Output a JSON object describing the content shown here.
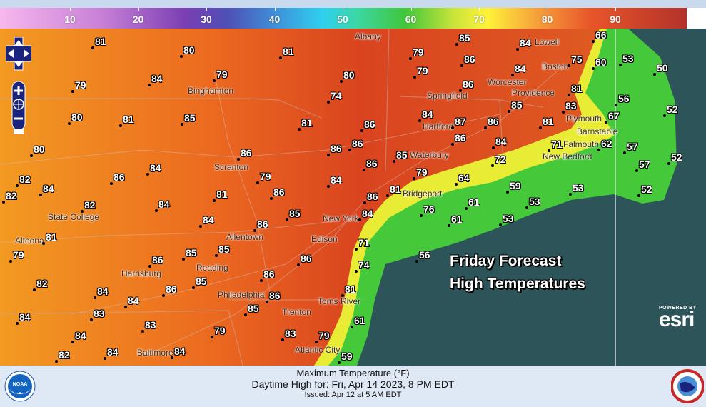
{
  "legend": {
    "ticks": [
      "10",
      "20",
      "30",
      "40",
      "50",
      "60",
      "70",
      "80",
      "90"
    ],
    "unit": "°F"
  },
  "map": {
    "title_line1": "Friday Forecast",
    "title_line2": "High Temperatures",
    "attribution_small": "POWERED BY",
    "attribution_brand": "esri",
    "temperatures": [
      "81",
      "80",
      "81",
      "79",
      "85",
      "84",
      "66",
      "53",
      "60",
      "75",
      "50",
      "84",
      "86",
      "79",
      "80",
      "79",
      "84",
      "79",
      "74",
      "86",
      "81",
      "56",
      "52",
      "83",
      "67",
      "80",
      "81",
      "85",
      "81",
      "86",
      "84",
      "87",
      "86",
      "81",
      "85",
      "80",
      "86",
      "86",
      "86",
      "85",
      "86",
      "84",
      "71",
      "62",
      "57",
      "52",
      "57",
      "84",
      "86",
      "82",
      "79",
      "86",
      "72",
      "79",
      "64",
      "84",
      "84",
      "82",
      "81",
      "86",
      "81",
      "86",
      "59",
      "53",
      "52",
      "53",
      "61",
      "82",
      "84",
      "84",
      "85",
      "84",
      "76",
      "53",
      "61",
      "86",
      "81",
      "71",
      "85",
      "85",
      "86",
      "79",
      "56",
      "86",
      "74",
      "86",
      "85",
      "82",
      "86",
      "84",
      "81",
      "84",
      "86",
      "85",
      "83",
      "84",
      "61",
      "83",
      "79",
      "83",
      "79",
      "84",
      "84",
      "84",
      "59",
      "82"
    ],
    "cities": [
      "Albany",
      "Lowell",
      "Worcester",
      "Boston",
      "Binghamton",
      "Springfield",
      "Hartford",
      "Providence",
      "Plymouth",
      "Barnstable",
      "New Bedford",
      "Falmouth",
      "Waterbury",
      "Scranton",
      "Bridgeport",
      "New York",
      "State College",
      "Allentown",
      "Edison",
      "Altoona",
      "Harrisburg",
      "Reading",
      "Trenton",
      "Philadelphia",
      "Toms River",
      "Atlantic City",
      "Baltimore"
    ],
    "colors": {
      "ocean": "#2d5459",
      "coast_green": "#45c83a",
      "coast_yellow": "#e9ec35",
      "land_orange": "#f08c22",
      "land_red": "#d8441f"
    }
  },
  "footer": {
    "line1": "Maximum Temperature (°F)",
    "line2": "Daytime High for: Fri, Apr 14 2023,   8 PM EDT",
    "line3": "Issued: Apr 12 at 5 AM EDT",
    "left_logo": "NOAA",
    "right_logo": "NATIONAL WEATHER SERVICE"
  }
}
